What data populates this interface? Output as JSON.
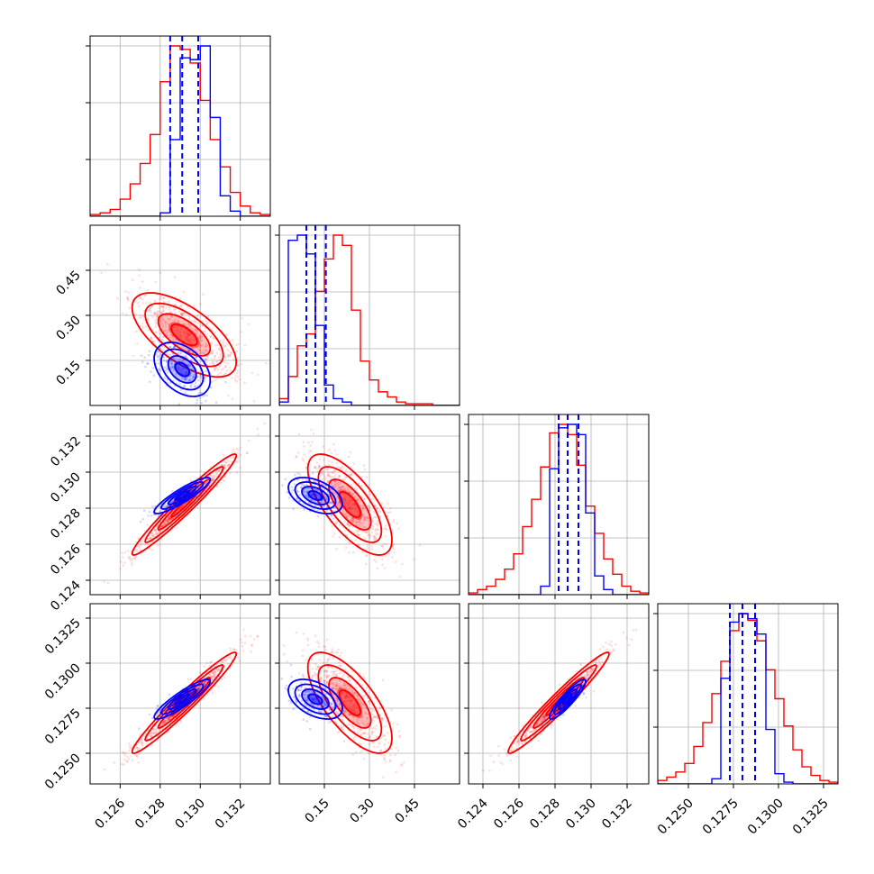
{
  "colors": {
    "primary": "#0000ff",
    "comparison": "#ff0000",
    "grid": "#b0b0b0",
    "axes": "#000000"
  },
  "chart_data": {
    "type": "corner",
    "parameters": [
      {
        "index": 0,
        "range": [
          0.1245,
          0.1335
        ],
        "ticks": [
          "0.126",
          "0.128",
          "0.130",
          "0.132"
        ],
        "tick_values": [
          0.126,
          0.128,
          0.13,
          0.132
        ]
      },
      {
        "index": 1,
        "range": [
          0.0,
          0.6
        ],
        "ticks": [
          "0.15",
          "0.30",
          "0.45"
        ],
        "tick_values": [
          0.15,
          0.3,
          0.45
        ]
      },
      {
        "index": 2,
        "range": [
          0.1232,
          0.1332
        ],
        "ticks": [
          "0.124",
          "0.126",
          "0.128",
          "0.130",
          "0.132"
        ],
        "tick_values": [
          0.124,
          0.126,
          0.128,
          0.13,
          0.132
        ]
      },
      {
        "index": 3,
        "range": [
          0.1233,
          0.1333
        ],
        "ticks": [
          "0.1250",
          "0.1275",
          "0.1300",
          "0.1325"
        ],
        "tick_values": [
          0.125,
          0.1275,
          0.13,
          0.1325
        ]
      }
    ],
    "quantile_lines": [
      [
        0.1285,
        0.1291,
        0.1299
      ],
      [
        0.09,
        0.12,
        0.155
      ],
      [
        0.1282,
        0.1287,
        0.1293
      ],
      [
        0.1273,
        0.128,
        0.1287
      ]
    ],
    "series": [
      {
        "name": "",
        "color": "#0000ff",
        "means": [
          0.1291,
          0.12,
          0.1287,
          0.128
        ],
        "sigmas": [
          0.0007,
          0.045,
          0.0005,
          0.00055
        ],
        "correlations": [
          [
            1,
            -0.4,
            0.9,
            0.9
          ],
          [
            -0.4,
            1,
            -0.45,
            -0.45
          ],
          [
            0.9,
            -0.45,
            1,
            0.9
          ],
          [
            0.9,
            -0.45,
            0.9,
            1
          ]
        ]
      },
      {
        "name": "",
        "color": "#ff0000",
        "means": [
          0.1292,
          0.235,
          0.1282,
          0.1278
        ],
        "sigmas": [
          0.0013,
          0.07,
          0.0014,
          0.0014
        ],
        "correlations": [
          [
            1,
            -0.65,
            0.97,
            0.97
          ],
          [
            -0.65,
            1,
            -0.7,
            -0.7
          ],
          [
            0.97,
            -0.7,
            1,
            0.97
          ],
          [
            0.97,
            -0.7,
            0.97,
            1
          ]
        ]
      }
    ],
    "histograms": [
      {
        "bin_edges": [
          0.1245,
          0.125,
          0.1255,
          0.126,
          0.1265,
          0.127,
          0.1275,
          0.128,
          0.1285,
          0.129,
          0.1295,
          0.13,
          0.1305,
          0.131,
          0.1315,
          0.132,
          0.1325,
          0.133,
          0.1335
        ],
        "blue": [
          0,
          0,
          0,
          0,
          0,
          0,
          0,
          0.02,
          0.45,
          0.93,
          0.92,
          1.0,
          0.58,
          0.12,
          0.03,
          0,
          0,
          0
        ],
        "red": [
          0.01,
          0.02,
          0.04,
          0.1,
          0.19,
          0.31,
          0.48,
          0.79,
          1.0,
          0.98,
          0.9,
          0.68,
          0.45,
          0.29,
          0.14,
          0.06,
          0.02,
          0.01
        ]
      },
      {
        "bin_edges": [
          0.0,
          0.03,
          0.06,
          0.09,
          0.12,
          0.15,
          0.18,
          0.21,
          0.24,
          0.27,
          0.3,
          0.33,
          0.36,
          0.39,
          0.42,
          0.45,
          0.48,
          0.51,
          0.54,
          0.57,
          0.6
        ],
        "blue": [
          0.02,
          0.97,
          1.0,
          0.89,
          0.47,
          0.12,
          0.04,
          0.02,
          0,
          0,
          0,
          0,
          0,
          0,
          0,
          0,
          0,
          0,
          0,
          0
        ],
        "red": [
          0.04,
          0.17,
          0.35,
          0.42,
          0.67,
          0.86,
          1.0,
          0.94,
          0.56,
          0.26,
          0.15,
          0.08,
          0.05,
          0.02,
          0.01,
          0.01,
          0.01,
          0,
          0,
          0
        ]
      },
      {
        "bin_edges": [
          0.1232,
          0.1237,
          0.1242,
          0.1247,
          0.1252,
          0.1257,
          0.1262,
          0.1267,
          0.1272,
          0.1277,
          0.1282,
          0.1287,
          0.1292,
          0.1297,
          0.1302,
          0.1307,
          0.1312,
          0.1317,
          0.1322,
          0.1327,
          0.1332
        ],
        "blue": [
          0,
          0,
          0,
          0,
          0,
          0,
          0,
          0,
          0.05,
          0.74,
          0.98,
          1.0,
          0.94,
          0.48,
          0.11,
          0.03,
          0,
          0,
          0,
          0
        ],
        "red": [
          0.01,
          0.03,
          0.05,
          0.09,
          0.15,
          0.24,
          0.4,
          0.56,
          0.75,
          0.95,
          1.0,
          0.94,
          0.76,
          0.52,
          0.36,
          0.21,
          0.12,
          0.05,
          0.02,
          0.01
        ]
      },
      {
        "bin_edges": [
          0.1233,
          0.1238,
          0.1243,
          0.1248,
          0.1253,
          0.1258,
          0.1263,
          0.1268,
          0.1273,
          0.1278,
          0.1283,
          0.1288,
          0.1293,
          0.1298,
          0.1303,
          0.1308,
          0.1313,
          0.1318,
          0.1323,
          0.1328,
          0.1333
        ],
        "blue": [
          0,
          0,
          0,
          0,
          0,
          0,
          0.03,
          0.62,
          0.95,
          1.0,
          0.97,
          0.88,
          0.32,
          0.06,
          0.01,
          0,
          0,
          0,
          0,
          0
        ],
        "red": [
          0.02,
          0.04,
          0.07,
          0.12,
          0.22,
          0.36,
          0.53,
          0.72,
          0.9,
          1.0,
          0.96,
          0.84,
          0.67,
          0.5,
          0.34,
          0.2,
          0.1,
          0.05,
          0.02,
          0.01
        ]
      }
    ],
    "contour_levels_sigma": [
      0.5,
      1.0,
      1.5,
      2.0
    ],
    "grid": true,
    "legend": "none",
    "title": "",
    "axis_labels": [
      "",
      "",
      "",
      ""
    ]
  }
}
